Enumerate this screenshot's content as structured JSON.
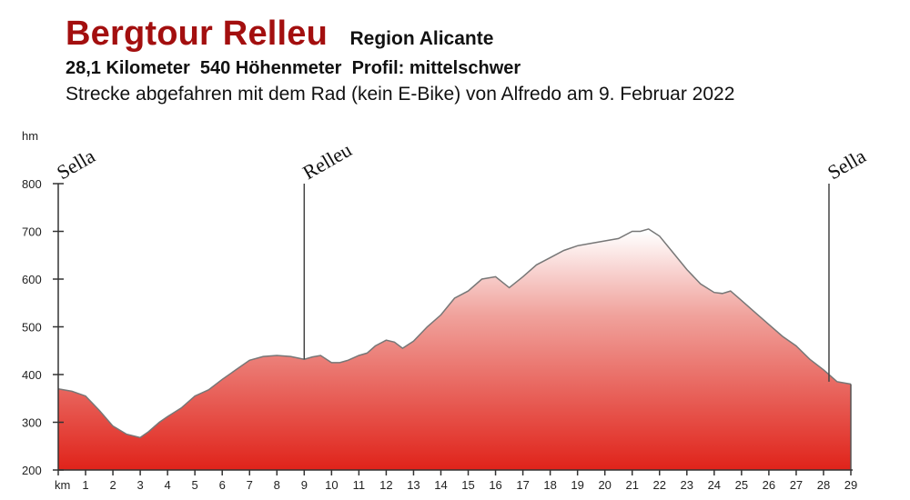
{
  "header": {
    "title": "Bergtour Relleu",
    "region": "Region Alicante",
    "stats": "28,1 Kilometer  540 Höhenmeter  Profil: mittelschwer",
    "description": "Strecke abgefahren mit dem Rad (kein E-Bike) von Alfredo am 9. Februar 2022"
  },
  "colors": {
    "title": "#a30f0f",
    "fill_bottom": "#e0231a",
    "fill_top_low": "#e8544a",
    "fill_top_high": "#ffffff",
    "outline": "#777777",
    "axis": "#333333"
  },
  "chart_data": {
    "type": "area",
    "title": "Bergtour Relleu",
    "xlabel": "km",
    "ylabel": "hm",
    "xlim": [
      0,
      29
    ],
    "ylim": [
      200,
      800
    ],
    "x_ticks": [
      1,
      2,
      3,
      4,
      5,
      6,
      7,
      8,
      9,
      10,
      11,
      12,
      13,
      14,
      15,
      16,
      17,
      18,
      19,
      20,
      21,
      22,
      23,
      24,
      25,
      26,
      27,
      28,
      29
    ],
    "y_ticks": [
      200,
      300,
      400,
      500,
      600,
      700,
      800
    ],
    "grid": false,
    "annotations": [
      {
        "label": "Sella",
        "km": 0
      },
      {
        "label": "Relleu",
        "km": 9
      },
      {
        "label": "Sella",
        "km": 28.2
      }
    ],
    "x": [
      0,
      0.5,
      1,
      1.5,
      2,
      2.5,
      3,
      3.3,
      3.7,
      4,
      4.5,
      5,
      5.5,
      6,
      6.5,
      7,
      7.5,
      8,
      8.5,
      9,
      9.3,
      9.6,
      10,
      10.3,
      10.6,
      11,
      11.3,
      11.6,
      12,
      12.3,
      12.6,
      13,
      13.5,
      14,
      14.5,
      15,
      15.5,
      16,
      16.5,
      17,
      17.5,
      18,
      18.5,
      19,
      19.5,
      20,
      20.5,
      21,
      21.3,
      21.6,
      22,
      22.5,
      23,
      23.5,
      24,
      24.3,
      24.6,
      25,
      25.5,
      26,
      26.5,
      27,
      27.5,
      28,
      28.5,
      29
    ],
    "values": [
      370,
      365,
      355,
      325,
      292,
      275,
      268,
      280,
      300,
      312,
      330,
      355,
      368,
      390,
      410,
      430,
      438,
      440,
      438,
      432,
      437,
      440,
      425,
      425,
      430,
      440,
      445,
      460,
      472,
      468,
      455,
      470,
      500,
      525,
      560,
      575,
      600,
      605,
      582,
      605,
      630,
      645,
      660,
      670,
      675,
      680,
      685,
      700,
      700,
      705,
      690,
      655,
      620,
      590,
      572,
      570,
      575,
      555,
      530,
      505,
      480,
      460,
      432,
      410,
      385,
      380
    ]
  }
}
